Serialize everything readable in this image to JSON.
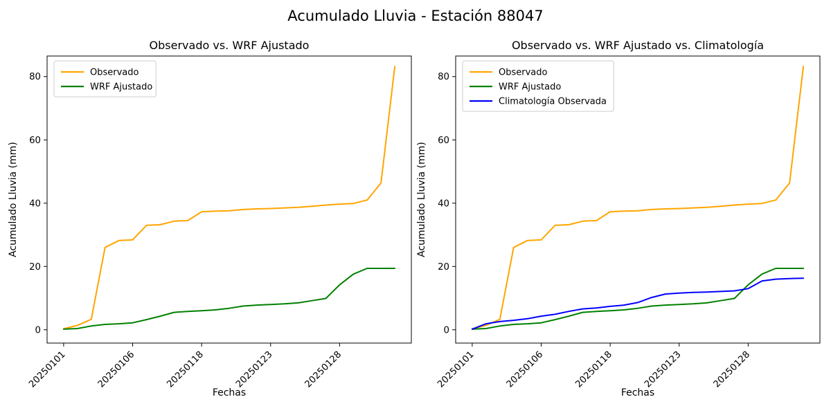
{
  "figure": {
    "suptitle": "Acumulado Lluvia - Estación 88047",
    "background_color": "#ffffff",
    "text_color": "#000000",
    "spine_color": "#000000",
    "legend_border_color": "#cccccc"
  },
  "chart_data": [
    {
      "type": "line",
      "title": "Observado vs. WRF Ajustado",
      "xlabel": "Fechas",
      "ylabel": "Acumulado Lluvia (mm)",
      "n_points": 25,
      "x_tick_positions": [
        0,
        5,
        10,
        15,
        20
      ],
      "x_tick_labels": [
        "20250101",
        "20250106",
        "20250118",
        "20250123",
        "20250128"
      ],
      "x_tick_rotation": 45,
      "y_ticks": [
        0,
        20,
        40,
        60,
        80
      ],
      "ylim": [
        -4.2,
        86.5
      ],
      "grid": false,
      "legend_position": "upper left",
      "series": [
        {
          "name": "Observado",
          "color": "#FFA500",
          "values": [
            0.3,
            1.4,
            3.3,
            26.0,
            28.2,
            28.4,
            33.0,
            33.2,
            34.3,
            34.5,
            37.3,
            37.5,
            37.6,
            38.0,
            38.2,
            38.3,
            38.5,
            38.7,
            39.0,
            39.4,
            39.7,
            39.9,
            41.0,
            46.4,
            83.2
          ]
        },
        {
          "name": "WRF Ajustado",
          "color": "#008000",
          "values": [
            0.2,
            0.4,
            1.2,
            1.7,
            1.9,
            2.2,
            3.2,
            4.3,
            5.5,
            5.8,
            6.0,
            6.3,
            6.8,
            7.5,
            7.8,
            8.0,
            8.2,
            8.5,
            9.2,
            9.9,
            14.2,
            17.6,
            19.4,
            19.4,
            19.4
          ]
        }
      ]
    },
    {
      "type": "line",
      "title": "Observado vs. WRF Ajustado vs. Climatología",
      "xlabel": "Fechas",
      "ylabel": "Acumulado Lluvia (mm)",
      "n_points": 25,
      "x_tick_positions": [
        0,
        5,
        10,
        15,
        20
      ],
      "x_tick_labels": [
        "20250101",
        "20250106",
        "20250118",
        "20250123",
        "20250128"
      ],
      "x_tick_rotation": 45,
      "y_ticks": [
        0,
        20,
        40,
        60,
        80
      ],
      "ylim": [
        -4.2,
        86.5
      ],
      "grid": false,
      "legend_position": "upper left",
      "series": [
        {
          "name": "Observado",
          "color": "#FFA500",
          "values": [
            0.3,
            1.4,
            3.3,
            26.0,
            28.2,
            28.4,
            33.0,
            33.2,
            34.3,
            34.5,
            37.3,
            37.5,
            37.6,
            38.0,
            38.2,
            38.3,
            38.5,
            38.7,
            39.0,
            39.4,
            39.7,
            39.9,
            41.0,
            46.4,
            83.2
          ]
        },
        {
          "name": "WRF Ajustado",
          "color": "#008000",
          "values": [
            0.2,
            0.4,
            1.2,
            1.7,
            1.9,
            2.2,
            3.2,
            4.3,
            5.5,
            5.8,
            6.0,
            6.3,
            6.8,
            7.5,
            7.8,
            8.0,
            8.2,
            8.5,
            9.2,
            9.9,
            14.2,
            17.6,
            19.4,
            19.4,
            19.4
          ]
        },
        {
          "name": "Climatología Observada",
          "color": "#0000FF",
          "values": [
            0.2,
            1.9,
            2.6,
            3.0,
            3.5,
            4.3,
            4.9,
            5.8,
            6.6,
            6.9,
            7.4,
            7.8,
            8.6,
            10.2,
            11.3,
            11.6,
            11.8,
            11.9,
            12.1,
            12.3,
            13.0,
            15.4,
            16.0,
            16.2,
            16.3
          ]
        }
      ]
    }
  ]
}
